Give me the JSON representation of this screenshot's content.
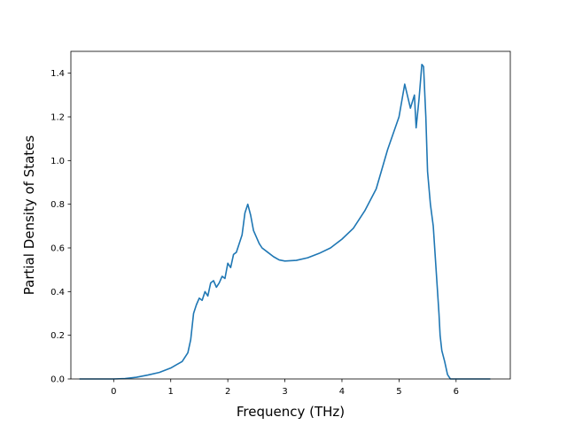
{
  "chart_data": {
    "type": "line",
    "title": "",
    "xlabel": "Frequency (THz)",
    "ylabel": "Partial Density of States",
    "xlim": [
      -0.75,
      6.95
    ],
    "ylim": [
      0.0,
      1.5
    ],
    "xticks": [
      "0",
      "1",
      "2",
      "3",
      "4",
      "5",
      "6"
    ],
    "yticks": [
      "0.0",
      "0.2",
      "0.4",
      "0.6",
      "0.8",
      "1.0",
      "1.2",
      "1.4"
    ],
    "grid": false,
    "legend": "none",
    "line_color": "#1f77b4",
    "series": [
      {
        "x": [
          -0.6,
          0.0,
          0.2,
          0.4,
          0.6,
          0.8,
          1.0,
          1.1,
          1.2,
          1.3,
          1.35,
          1.4,
          1.45,
          1.5,
          1.55,
          1.6,
          1.65,
          1.7,
          1.75,
          1.8,
          1.85,
          1.9,
          1.95,
          2.0,
          2.05,
          2.1,
          2.15,
          2.2,
          2.25,
          2.3,
          2.35,
          2.4,
          2.45,
          2.5,
          2.55,
          2.6,
          2.7,
          2.8,
          2.9,
          3.0,
          3.2,
          3.4,
          3.6,
          3.8,
          4.0,
          4.2,
          4.4,
          4.6,
          4.8,
          5.0,
          5.1,
          5.2,
          5.27,
          5.3,
          5.35,
          5.4,
          5.43,
          5.47,
          5.5,
          5.55,
          5.6,
          5.65,
          5.7,
          5.72,
          5.75,
          5.8,
          5.85,
          5.9,
          5.95,
          6.0,
          6.1,
          6.3,
          6.6
        ],
        "y": [
          0.0,
          0.0,
          0.002,
          0.008,
          0.018,
          0.03,
          0.05,
          0.065,
          0.08,
          0.12,
          0.18,
          0.3,
          0.34,
          0.37,
          0.36,
          0.4,
          0.38,
          0.44,
          0.45,
          0.42,
          0.44,
          0.47,
          0.46,
          0.53,
          0.51,
          0.57,
          0.58,
          0.62,
          0.66,
          0.76,
          0.8,
          0.75,
          0.68,
          0.65,
          0.62,
          0.6,
          0.58,
          0.56,
          0.545,
          0.54,
          0.543,
          0.555,
          0.575,
          0.6,
          0.64,
          0.69,
          0.77,
          0.87,
          1.05,
          1.2,
          1.35,
          1.24,
          1.3,
          1.15,
          1.28,
          1.44,
          1.43,
          1.2,
          0.95,
          0.8,
          0.7,
          0.5,
          0.3,
          0.2,
          0.13,
          0.08,
          0.02,
          0.0,
          0.0,
          0.0,
          0.0,
          0.0,
          0.0
        ]
      }
    ]
  }
}
